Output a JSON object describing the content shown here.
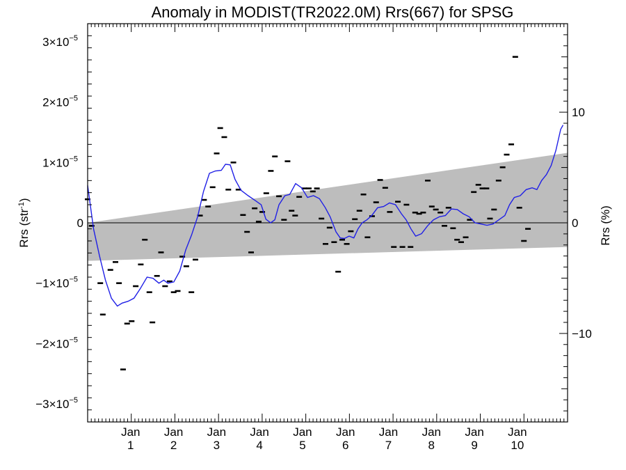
{
  "chart_data": {
    "type": "line",
    "title": "Anomaly in MODIST(TR2022.0M) Rrs(667) for SPSG",
    "ylabel_left": {
      "base": "Rrs (str",
      "sup": "-1",
      "end": ")"
    },
    "ylabel_right": "Rrs (%)",
    "xlim": [
      0,
      11
    ],
    "ylim_left": [
      -3.3e-05,
      3.3e-05
    ],
    "ylim_right": [
      -18,
      18
    ],
    "x_tick_labels": [
      {
        "x": 1,
        "top": "Jan",
        "bottom": "1"
      },
      {
        "x": 2,
        "top": "Jan",
        "bottom": "2"
      },
      {
        "x": 3,
        "top": "Jan",
        "bottom": "3"
      },
      {
        "x": 4,
        "top": "Jan",
        "bottom": "4"
      },
      {
        "x": 5,
        "top": "Jan",
        "bottom": "5"
      },
      {
        "x": 6,
        "top": "Jan",
        "bottom": "6"
      },
      {
        "x": 7,
        "top": "Jan",
        "bottom": "7"
      },
      {
        "x": 8,
        "top": "Jan",
        "bottom": "8"
      },
      {
        "x": 9,
        "top": "Jan",
        "bottom": "9"
      },
      {
        "x": 10,
        "top": "Jan",
        "bottom": "10"
      }
    ],
    "y_tick_labels_left": [
      {
        "value": 3e-05,
        "mant": "3",
        "sign": ""
      },
      {
        "value": 2e-05,
        "mant": "2",
        "sign": ""
      },
      {
        "value": 1e-05,
        "mant": "1",
        "sign": ""
      },
      {
        "value": 0,
        "mant": "0",
        "sign": "",
        "plain": true
      },
      {
        "value": -1e-05,
        "mant": "1",
        "sign": "−"
      },
      {
        "value": -2e-05,
        "mant": "2",
        "sign": "−"
      },
      {
        "value": -3e-05,
        "mant": "3",
        "sign": "−"
      }
    ],
    "tick_times": "×10",
    "tick_exponent": "−5",
    "y_tick_labels_right": [
      {
        "value": 10,
        "label": "10"
      },
      {
        "value": 0,
        "label": "0"
      },
      {
        "value": -10,
        "label": "−10"
      }
    ],
    "uncertainty_band": {
      "upper": [
        [
          0.0,
          0.0
        ],
        [
          11.0,
          1.16e-05
        ]
      ],
      "lower": [
        [
          0.0,
          -6.3e-06
        ],
        [
          11.0,
          -4e-06
        ]
      ]
    },
    "zero_line": 0,
    "monthly_anomalies": [
      [
        0.0,
        0.39
      ],
      [
        0.08,
        -0.05
      ],
      [
        0.25,
        -1.0
      ],
      [
        0.3,
        -1.52
      ],
      [
        0.45,
        -0.78
      ],
      [
        0.55,
        -0.65
      ],
      [
        0.62,
        -1.0
      ],
      [
        0.7,
        -2.43
      ],
      [
        0.78,
        -1.67
      ],
      [
        0.87,
        -1.63
      ],
      [
        0.95,
        -1.05
      ],
      [
        1.05,
        -0.69
      ],
      [
        1.13,
        -0.28
      ],
      [
        1.22,
        -1.15
      ],
      [
        1.28,
        -1.65
      ],
      [
        1.37,
        -0.88
      ],
      [
        1.45,
        -0.49
      ],
      [
        1.53,
        -1.05
      ],
      [
        1.62,
        -0.97
      ],
      [
        1.7,
        -1.15
      ],
      [
        1.78,
        -1.13
      ],
      [
        1.87,
        -0.56
      ],
      [
        1.95,
        -0.72
      ],
      [
        2.05,
        -1.15
      ],
      [
        2.13,
        -0.61
      ],
      [
        2.22,
        0.12
      ],
      [
        2.3,
        0.38
      ],
      [
        2.38,
        0.27
      ],
      [
        2.47,
        0.59
      ],
      [
        2.55,
        1.15
      ],
      [
        2.62,
        1.57
      ],
      [
        2.7,
        1.42
      ],
      [
        2.78,
        0.55
      ],
      [
        2.88,
        1.0
      ],
      [
        2.98,
        0.55
      ],
      [
        3.07,
        0.13
      ],
      [
        3.15,
        -0.15
      ],
      [
        3.23,
        -0.49
      ],
      [
        3.3,
        0.24
      ],
      [
        3.38,
        0.02
      ],
      [
        3.45,
        0.18
      ],
      [
        3.53,
        0.49
      ],
      [
        3.62,
        0.86
      ],
      [
        3.7,
        1.1
      ],
      [
        3.78,
        0.44
      ],
      [
        3.88,
        0.05
      ],
      [
        3.95,
        1.02
      ],
      [
        4.03,
        0.2
      ],
      [
        4.1,
        0.12
      ],
      [
        4.18,
        0.43
      ],
      [
        4.28,
        0.57
      ],
      [
        4.37,
        0.57
      ],
      [
        4.45,
        0.52
      ],
      [
        4.53,
        0.57
      ],
      [
        4.62,
        0.07
      ],
      [
        4.7,
        -0.35
      ],
      [
        4.78,
        -0.08
      ],
      [
        4.87,
        -0.32
      ],
      [
        4.95,
        -0.81
      ],
      [
        5.03,
        -0.28
      ],
      [
        5.12,
        -0.35
      ],
      [
        5.2,
        -0.14
      ],
      [
        5.28,
        0.06
      ],
      [
        5.37,
        0.2
      ],
      [
        5.45,
        0.47
      ],
      [
        5.53,
        -0.24
      ],
      [
        5.62,
        0.11
      ],
      [
        5.7,
        0.34
      ],
      [
        5.78,
        0.71
      ],
      [
        5.88,
        0.58
      ],
      [
        5.97,
        0.18
      ],
      [
        6.05,
        -0.4
      ],
      [
        6.13,
        0.35
      ],
      [
        6.22,
        -0.4
      ],
      [
        6.3,
        0.3
      ],
      [
        6.38,
        -0.4
      ],
      [
        6.47,
        0.17
      ],
      [
        6.55,
        0.15
      ],
      [
        6.63,
        0.17
      ],
      [
        6.72,
        0.7
      ],
      [
        6.8,
        0.27
      ],
      [
        6.88,
        0.22
      ],
      [
        6.97,
        0.17
      ],
      [
        7.05,
        -0.05
      ],
      [
        7.13,
        0.25
      ],
      [
        7.22,
        -0.09
      ],
      [
        7.3,
        -0.28
      ],
      [
        7.38,
        -0.32
      ],
      [
        7.47,
        -0.24
      ],
      [
        7.55,
        0.05
      ],
      [
        7.63,
        0.51
      ],
      [
        7.72,
        0.63
      ],
      [
        7.8,
        0.57
      ],
      [
        7.88,
        0.57
      ],
      [
        7.95,
        0.07
      ],
      [
        8.03,
        0.22
      ],
      [
        8.12,
        0.7
      ],
      [
        8.2,
        0.92
      ],
      [
        8.28,
        1.13
      ],
      [
        8.37,
        1.3
      ],
      [
        8.45,
        2.75
      ],
      [
        8.53,
        0.25
      ],
      [
        8.62,
        -0.3
      ],
      [
        8.7,
        -0.1
      ]
    ],
    "monthly_x_scale": 1.16,
    "monthly_x_offset": 0.0,
    "running_mean": [
      [
        0.0,
        0.62
      ],
      [
        0.1,
        -0.1
      ],
      [
        0.2,
        -0.55
      ],
      [
        0.3,
        -0.95
      ],
      [
        0.4,
        -1.25
      ],
      [
        0.5,
        -1.38
      ],
      [
        0.58,
        -1.33
      ],
      [
        0.68,
        -1.3
      ],
      [
        0.78,
        -1.25
      ],
      [
        0.88,
        -1.1
      ],
      [
        1.0,
        -0.9
      ],
      [
        1.1,
        -0.92
      ],
      [
        1.2,
        -1.0
      ],
      [
        1.28,
        -0.95
      ],
      [
        1.35,
        -1.0
      ],
      [
        1.45,
        -0.98
      ],
      [
        1.55,
        -0.8
      ],
      [
        1.65,
        -0.45
      ],
      [
        1.75,
        -0.2
      ],
      [
        1.85,
        0.1
      ],
      [
        1.95,
        0.52
      ],
      [
        2.05,
        0.82
      ],
      [
        2.15,
        0.86
      ],
      [
        2.25,
        0.87
      ],
      [
        2.32,
        0.97
      ],
      [
        2.4,
        0.96
      ],
      [
        2.48,
        0.72
      ],
      [
        2.58,
        0.54
      ],
      [
        2.7,
        0.45
      ],
      [
        2.82,
        0.37
      ],
      [
        2.92,
        0.3
      ],
      [
        3.0,
        0.06
      ],
      [
        3.08,
        0.0
      ],
      [
        3.15,
        0.05
      ],
      [
        3.22,
        0.3
      ],
      [
        3.32,
        0.45
      ],
      [
        3.4,
        0.47
      ],
      [
        3.5,
        0.65
      ],
      [
        3.6,
        0.58
      ],
      [
        3.7,
        0.42
      ],
      [
        3.8,
        0.45
      ],
      [
        3.9,
        0.4
      ],
      [
        4.0,
        0.25
      ],
      [
        4.08,
        0.1
      ],
      [
        4.18,
        -0.15
      ],
      [
        4.25,
        -0.25
      ],
      [
        4.32,
        -0.26
      ],
      [
        4.4,
        -0.22
      ],
      [
        4.48,
        -0.25
      ],
      [
        4.55,
        -0.1
      ],
      [
        4.62,
        0.0
      ],
      [
        4.7,
        0.05
      ],
      [
        4.78,
        0.12
      ],
      [
        4.88,
        0.25
      ],
      [
        4.98,
        0.27
      ],
      [
        5.08,
        0.33
      ],
      [
        5.18,
        0.3
      ],
      [
        5.28,
        0.15
      ],
      [
        5.36,
        0.05
      ],
      [
        5.44,
        -0.1
      ],
      [
        5.52,
        -0.22
      ],
      [
        5.62,
        -0.18
      ],
      [
        5.72,
        -0.05
      ],
      [
        5.82,
        0.05
      ],
      [
        5.92,
        0.1
      ],
      [
        6.02,
        0.12
      ],
      [
        6.12,
        0.23
      ],
      [
        6.22,
        0.22
      ],
      [
        6.32,
        0.15
      ],
      [
        6.42,
        0.1
      ],
      [
        6.52,
        0.0
      ],
      [
        6.62,
        -0.02
      ],
      [
        6.72,
        -0.04
      ],
      [
        6.82,
        -0.02
      ],
      [
        6.92,
        0.05
      ],
      [
        7.02,
        0.12
      ],
      [
        7.1,
        0.3
      ],
      [
        7.18,
        0.42
      ],
      [
        7.28,
        0.45
      ],
      [
        7.38,
        0.55
      ],
      [
        7.48,
        0.58
      ],
      [
        7.56,
        0.55
      ],
      [
        7.64,
        0.7
      ],
      [
        7.72,
        0.8
      ],
      [
        7.8,
        0.95
      ],
      [
        7.88,
        1.2
      ],
      [
        7.96,
        1.55
      ],
      [
        8.0,
        1.62
      ]
    ],
    "running_x_scale": 1.362,
    "running_x_offset": 0.0
  }
}
